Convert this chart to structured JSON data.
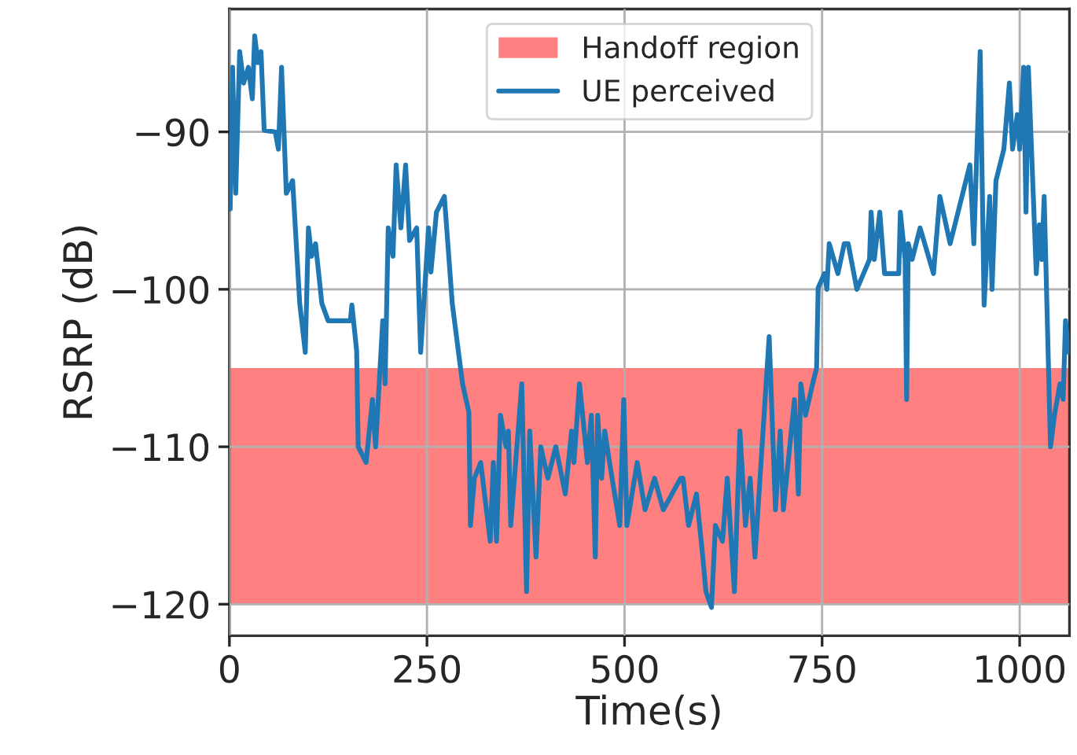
{
  "chart_data": {
    "type": "line",
    "xlabel": "Time(s)",
    "ylabel": "RSRP (dB)",
    "xlim": [
      0,
      1063
    ],
    "ylim": [
      -122,
      -82.2
    ],
    "xticks": [
      0,
      250,
      500,
      750,
      1000
    ],
    "yticks": [
      -120,
      -110,
      -100,
      -90
    ],
    "grid": true,
    "legend": "top",
    "bands": [
      {
        "axis": "y",
        "from": -120,
        "to": -105,
        "label": "Handoff region",
        "color": "#ff8080"
      }
    ],
    "series": [
      {
        "name": "UE perceived",
        "color": "#1f77b4",
        "x": [
          1,
          4,
          8,
          13,
          18,
          24,
          29,
          32,
          36,
          40,
          44,
          58,
          62,
          66,
          72,
          80,
          89,
          96,
          100,
          104,
          109,
          117,
          125,
          153,
          155,
          161,
          163,
          173,
          181,
          185,
          194,
          197,
          201,
          207,
          211,
          217,
          223,
          228,
          237,
          242,
          252,
          255,
          262,
          272,
          282,
          295,
          303,
          305,
          310,
          318,
          330,
          334,
          338,
          343,
          350,
          353,
          356,
          370,
          376,
          380,
          388,
          394,
          403,
          413,
          425,
          433,
          436,
          443,
          453,
          458,
          463,
          466,
          471,
          475,
          481,
          494,
          499,
          503,
          516,
          526,
          538,
          549,
          571,
          574,
          581,
          591,
          599,
          603,
          610,
          615,
          624,
          630,
          639,
          646,
          653,
          659,
          665,
          683,
          691,
          697,
          701,
          715,
          720,
          723,
          729,
          738,
          743,
          745,
          753,
          756,
          759,
          770,
          778,
          783,
          794,
          810,
          812,
          816,
          823,
          829,
          847,
          849,
          855,
          857,
          859,
          864,
          874,
          891,
          899,
          912,
          937,
          942,
          950,
          955,
          962,
          965,
          970,
          980,
          987,
          991,
          997,
          1000,
          1005,
          1008,
          1011,
          1021,
          1025,
          1028,
          1031,
          1039,
          1044,
          1051,
          1055,
          1058,
          1062
        ],
        "values": [
          -94.9,
          -85.9,
          -93.9,
          -84.9,
          -86.9,
          -85.9,
          -87.9,
          -83.9,
          -85.6,
          -84.9,
          -89.9,
          -90,
          -91.1,
          -85.9,
          -93.9,
          -93.1,
          -100.9,
          -104,
          -96.1,
          -97.9,
          -97.1,
          -100.9,
          -102,
          -102,
          -101,
          -103.9,
          -110,
          -111,
          -107,
          -110,
          -102,
          -106,
          -96.1,
          -97.9,
          -92.1,
          -96.1,
          -92.1,
          -96.9,
          -96.1,
          -104,
          -96.1,
          -98.9,
          -95.1,
          -94.1,
          -100.9,
          -106,
          -107.8,
          -115,
          -112,
          -111,
          -116,
          -111,
          -116,
          -108,
          -110,
          -109,
          -115,
          -106,
          -119.2,
          -109,
          -117,
          -110,
          -112,
          -110,
          -113,
          -109,
          -111,
          -106,
          -111,
          -108,
          -117,
          -108,
          -112,
          -109,
          -111,
          -115,
          -107,
          -115,
          -111,
          -114,
          -112,
          -114,
          -112,
          -112,
          -115,
          -113,
          -117,
          -119.2,
          -120.2,
          -115,
          -116,
          -112,
          -119.2,
          -109,
          -115,
          -112,
          -117,
          -103,
          -114,
          -109,
          -114,
          -107,
          -113,
          -106,
          -108,
          -106,
          -105,
          -99.9,
          -99,
          -100,
          -97.1,
          -99,
          -97.1,
          -97.1,
          -100,
          -98.1,
          -95.1,
          -98.1,
          -95.1,
          -99,
          -99,
          -95.1,
          -98.1,
          -107,
          -97.1,
          -98.1,
          -96.1,
          -99,
          -94.1,
          -97.1,
          -92.1,
          -97.1,
          -84.9,
          -101,
          -94.1,
          -100,
          -93.1,
          -91.1,
          -86.9,
          -91.1,
          -88.9,
          -91.1,
          -85.9,
          -95.1,
          -85.9,
          -99,
          -95.9,
          -98.1,
          -94.1,
          -110,
          -108,
          -106,
          -107,
          -102,
          -104
        ]
      }
    ]
  }
}
